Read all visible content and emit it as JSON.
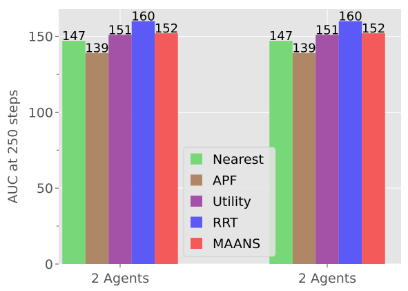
{
  "chart_data": {
    "type": "bar",
    "categories": [
      "2 Agents",
      "2 Agents"
    ],
    "series": [
      {
        "name": "Nearest",
        "values": [
          147,
          147
        ],
        "color": "#77d877"
      },
      {
        "name": "APF",
        "values": [
          139,
          139
        ],
        "color": "#b08766"
      },
      {
        "name": "Utility",
        "values": [
          151,
          151
        ],
        "color": "#a452a7"
      },
      {
        "name": "RRT",
        "values": [
          160,
          160
        ],
        "color": "#5b5af7"
      },
      {
        "name": "MAANS",
        "values": [
          152,
          152
        ],
        "color": "#f55a5a"
      }
    ],
    "data_labels": true,
    "title": "",
    "xlabel": "",
    "ylabel": "AUC at 250 steps",
    "ylim": [
      0,
      168
    ],
    "yticks": [
      0,
      50,
      100,
      150
    ],
    "ytick_labels": [
      "0",
      "50",
      "100",
      "150"
    ],
    "minor_yticks": [
      25,
      75,
      125
    ],
    "grid": true,
    "legend_position": "center-bottom",
    "plot_background": "#e5e5e5",
    "grid_color": "#ffffff"
  }
}
